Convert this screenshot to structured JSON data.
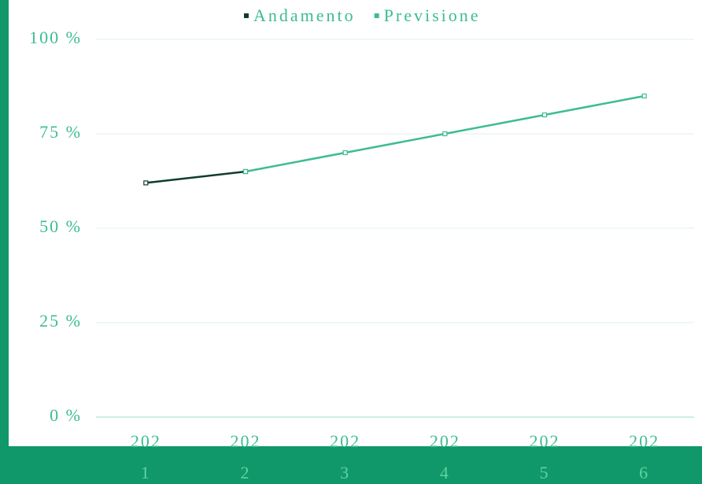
{
  "chart_data": {
    "type": "line",
    "categories": [
      "2021",
      "2022",
      "2023",
      "2024",
      "2025",
      "2026"
    ],
    "series": [
      {
        "name": "Andamento",
        "color": "#0e3d2c",
        "values": [
          62,
          65,
          null,
          null,
          null,
          null
        ]
      },
      {
        "name": "Previsione",
        "color": "#3dbd8e",
        "values": [
          null,
          65,
          70,
          75,
          80,
          85
        ]
      }
    ],
    "ylim": [
      0,
      100
    ],
    "yticks": [
      {
        "value": 0,
        "label": "0 %"
      },
      {
        "value": 25,
        "label": "25 %"
      },
      {
        "value": 50,
        "label": "50 %"
      },
      {
        "value": 75,
        "label": "75 %"
      },
      {
        "value": 100,
        "label": "100 %"
      }
    ],
    "grid": true,
    "legend": "top"
  }
}
